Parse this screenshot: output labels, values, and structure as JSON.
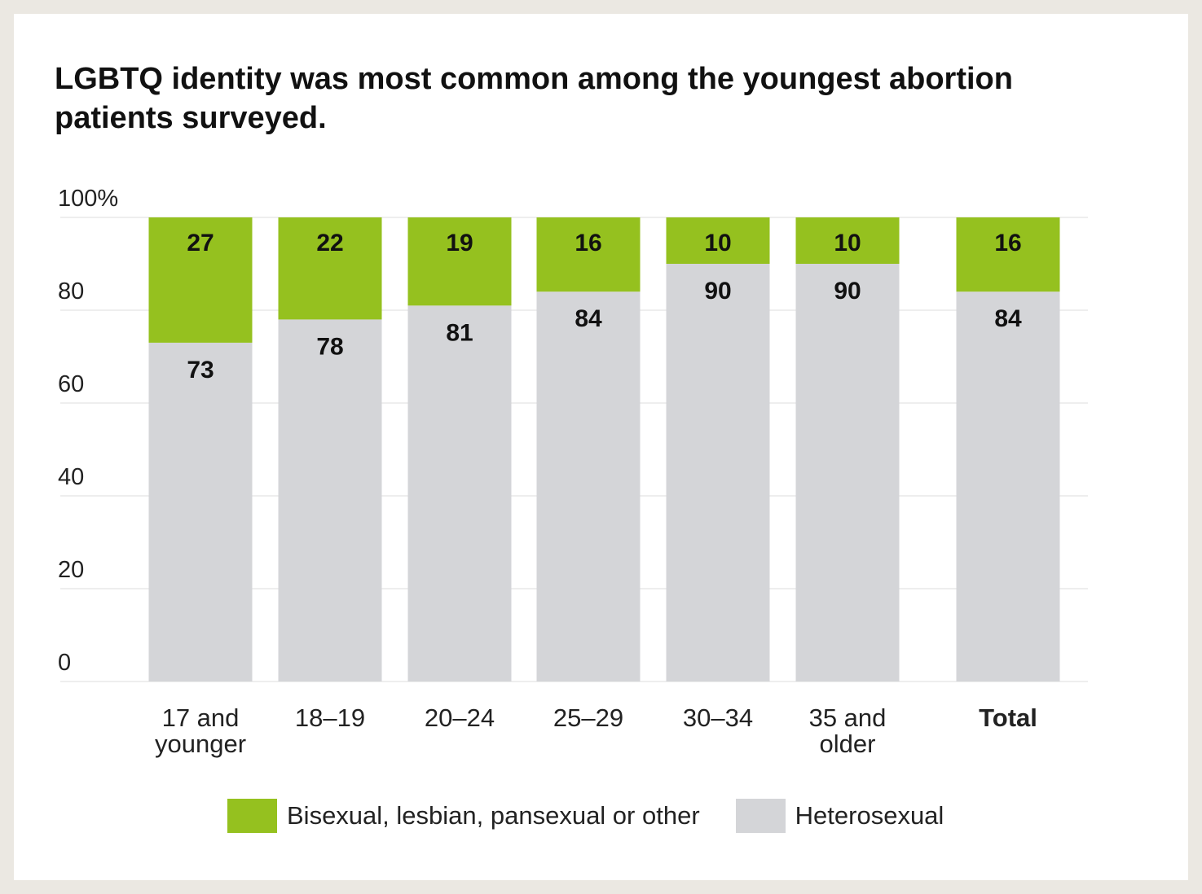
{
  "chart_data": {
    "type": "bar",
    "stacked": true,
    "title": "LGBTQ identity was most common among the youngest abortion patients surveyed.",
    "categories": [
      "17 and younger",
      "18–19",
      "20–24",
      "25–29",
      "30–34",
      "35 and older",
      "Total"
    ],
    "category_lines": [
      [
        "17 and",
        "younger"
      ],
      [
        "18–19"
      ],
      [
        "20–24"
      ],
      [
        "25–29"
      ],
      [
        "30–34"
      ],
      [
        "35 and",
        "older"
      ],
      [
        "Total"
      ]
    ],
    "series": [
      {
        "name": "Heterosexual",
        "color": "#d4d5d8",
        "values": [
          73,
          78,
          81,
          84,
          90,
          90,
          84
        ]
      },
      {
        "name": "Bisexual, lesbian, pansexual or other",
        "color": "#95c11f",
        "values": [
          27,
          22,
          19,
          16,
          10,
          10,
          16
        ]
      }
    ],
    "y_ticks": [
      "0",
      "20",
      "40",
      "60",
      "80",
      "100%"
    ],
    "ylim": [
      0,
      100
    ],
    "grid": true,
    "legend_position": "bottom",
    "bold_category": "Total"
  }
}
